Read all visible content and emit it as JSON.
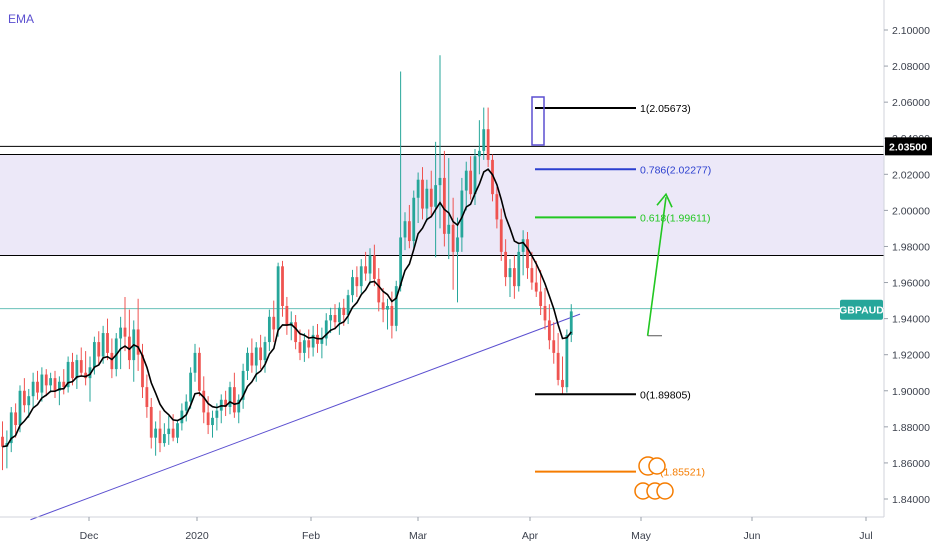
{
  "chart_data": {
    "type": "candlestick",
    "indicator_label": "EMA",
    "x_ticks": [
      "Dec",
      "2020",
      "Feb",
      "Mar",
      "Apr",
      "May",
      "Jun",
      "Jul"
    ],
    "y_ticks": [
      "1.84000",
      "1.86000",
      "1.88000",
      "1.90000",
      "1.92000",
      "1.94000",
      "1.96000",
      "1.98000",
      "2.00000",
      "2.02000",
      "2.04000",
      "2.06000",
      "2.08000",
      "2.10000"
    ],
    "ylim": [
      1.83,
      2.115
    ],
    "price_tag": {
      "value": "2.03500",
      "color": "#000000"
    },
    "symbol_tag": {
      "label": "GBPAUD",
      "value": 1.9455,
      "color": "#26a69a"
    },
    "resistance_zone": {
      "low": 1.975,
      "high": 2.031,
      "color": "#ece8f8",
      "border": "#000000"
    },
    "horizontal_lines": [
      2.0355,
      1.9455
    ],
    "fibonacci": [
      {
        "label": "1(2.05673)",
        "value": 2.05673,
        "color": "#000000"
      },
      {
        "label": "0.786(2.02277)",
        "value": 2.02277,
        "color": "#2b3fcf"
      },
      {
        "label": "0.618(1.99611)",
        "value": 1.99611,
        "color": "#22c722"
      },
      {
        "label": "0(1.89805)",
        "value": 1.89805,
        "color": "#000000"
      },
      {
        "label": "(1.85521)",
        "value": 1.85521,
        "color": "#f57c00"
      }
    ],
    "trendline": {
      "from": [
        0,
        1.8285
      ],
      "to": [
        132,
        1.9425
      ],
      "color": "#5b4fd0"
    },
    "projection_arrow": {
      "from": [
        147,
        1.9305
      ],
      "to": [
        153,
        2.0095
      ],
      "color": "#22c722"
    },
    "colors": {
      "up": "#26a69a",
      "down": "#ef5350",
      "ema": "#000000"
    },
    "candles": [
      {
        "o": 1.8745,
        "h": 1.883,
        "l": 1.856,
        "c": 1.869
      },
      {
        "o": 1.869,
        "h": 1.878,
        "l": 1.857,
        "c": 1.871
      },
      {
        "o": 1.871,
        "h": 1.891,
        "l": 1.866,
        "c": 1.888
      },
      {
        "o": 1.888,
        "h": 1.893,
        "l": 1.874,
        "c": 1.881
      },
      {
        "o": 1.881,
        "h": 1.903,
        "l": 1.877,
        "c": 1.9
      },
      {
        "o": 1.9,
        "h": 1.907,
        "l": 1.888,
        "c": 1.892
      },
      {
        "o": 1.892,
        "h": 1.901,
        "l": 1.885,
        "c": 1.897
      },
      {
        "o": 1.897,
        "h": 1.91,
        "l": 1.891,
        "c": 1.905
      },
      {
        "o": 1.905,
        "h": 1.911,
        "l": 1.895,
        "c": 1.899
      },
      {
        "o": 1.899,
        "h": 1.913,
        "l": 1.894,
        "c": 1.909
      },
      {
        "o": 1.909,
        "h": 1.912,
        "l": 1.897,
        "c": 1.903
      },
      {
        "o": 1.903,
        "h": 1.91,
        "l": 1.899,
        "c": 1.907
      },
      {
        "o": 1.907,
        "h": 1.911,
        "l": 1.896,
        "c": 1.9
      },
      {
        "o": 1.9,
        "h": 1.908,
        "l": 1.892,
        "c": 1.905
      },
      {
        "o": 1.905,
        "h": 1.912,
        "l": 1.898,
        "c": 1.902
      },
      {
        "o": 1.902,
        "h": 1.919,
        "l": 1.899,
        "c": 1.916
      },
      {
        "o": 1.916,
        "h": 1.921,
        "l": 1.903,
        "c": 1.907
      },
      {
        "o": 1.907,
        "h": 1.92,
        "l": 1.901,
        "c": 1.917
      },
      {
        "o": 1.917,
        "h": 1.924,
        "l": 1.908,
        "c": 1.91
      },
      {
        "o": 1.91,
        "h": 1.922,
        "l": 1.903,
        "c": 1.907
      },
      {
        "o": 1.907,
        "h": 1.919,
        "l": 1.894,
        "c": 1.913
      },
      {
        "o": 1.913,
        "h": 1.93,
        "l": 1.909,
        "c": 1.927
      },
      {
        "o": 1.927,
        "h": 1.933,
        "l": 1.914,
        "c": 1.919
      },
      {
        "o": 1.919,
        "h": 1.936,
        "l": 1.915,
        "c": 1.932
      },
      {
        "o": 1.932,
        "h": 1.94,
        "l": 1.917,
        "c": 1.921
      },
      {
        "o": 1.921,
        "h": 1.929,
        "l": 1.907,
        "c": 1.912
      },
      {
        "o": 1.912,
        "h": 1.932,
        "l": 1.908,
        "c": 1.929
      },
      {
        "o": 1.929,
        "h": 1.941,
        "l": 1.912,
        "c": 1.935
      },
      {
        "o": 1.935,
        "h": 1.952,
        "l": 1.922,
        "c": 1.93
      },
      {
        "o": 1.93,
        "h": 1.945,
        "l": 1.912,
        "c": 1.917
      },
      {
        "o": 1.917,
        "h": 1.939,
        "l": 1.905,
        "c": 1.934
      },
      {
        "o": 1.934,
        "h": 1.951,
        "l": 1.911,
        "c": 1.92
      },
      {
        "o": 1.92,
        "h": 1.926,
        "l": 1.896,
        "c": 1.902
      },
      {
        "o": 1.902,
        "h": 1.909,
        "l": 1.885,
        "c": 1.891
      },
      {
        "o": 1.891,
        "h": 1.896,
        "l": 1.868,
        "c": 1.874
      },
      {
        "o": 1.874,
        "h": 1.883,
        "l": 1.864,
        "c": 1.879
      },
      {
        "o": 1.879,
        "h": 1.889,
        "l": 1.866,
        "c": 1.871
      },
      {
        "o": 1.871,
        "h": 1.882,
        "l": 1.869,
        "c": 1.876
      },
      {
        "o": 1.876,
        "h": 1.886,
        "l": 1.87,
        "c": 1.879
      },
      {
        "o": 1.879,
        "h": 1.887,
        "l": 1.872,
        "c": 1.874
      },
      {
        "o": 1.874,
        "h": 1.884,
        "l": 1.871,
        "c": 1.882
      },
      {
        "o": 1.882,
        "h": 1.893,
        "l": 1.878,
        "c": 1.889
      },
      {
        "o": 1.889,
        "h": 1.898,
        "l": 1.883,
        "c": 1.894
      },
      {
        "o": 1.894,
        "h": 1.913,
        "l": 1.89,
        "c": 1.91
      },
      {
        "o": 1.91,
        "h": 1.926,
        "l": 1.905,
        "c": 1.921
      },
      {
        "o": 1.921,
        "h": 1.924,
        "l": 1.897,
        "c": 1.9
      },
      {
        "o": 1.9,
        "h": 1.908,
        "l": 1.882,
        "c": 1.888
      },
      {
        "o": 1.888,
        "h": 1.897,
        "l": 1.876,
        "c": 1.881
      },
      {
        "o": 1.881,
        "h": 1.889,
        "l": 1.874,
        "c": 1.885
      },
      {
        "o": 1.885,
        "h": 1.893,
        "l": 1.878,
        "c": 1.889
      },
      {
        "o": 1.889,
        "h": 1.898,
        "l": 1.882,
        "c": 1.895
      },
      {
        "o": 1.895,
        "h": 1.9,
        "l": 1.886,
        "c": 1.891
      },
      {
        "o": 1.891,
        "h": 1.905,
        "l": 1.887,
        "c": 1.902
      },
      {
        "o": 1.902,
        "h": 1.91,
        "l": 1.885,
        "c": 1.888
      },
      {
        "o": 1.888,
        "h": 1.898,
        "l": 1.882,
        "c": 1.895
      },
      {
        "o": 1.895,
        "h": 1.915,
        "l": 1.89,
        "c": 1.911
      },
      {
        "o": 1.911,
        "h": 1.924,
        "l": 1.906,
        "c": 1.921
      },
      {
        "o": 1.921,
        "h": 1.929,
        "l": 1.91,
        "c": 1.914
      },
      {
        "o": 1.914,
        "h": 1.927,
        "l": 1.905,
        "c": 1.924
      },
      {
        "o": 1.924,
        "h": 1.931,
        "l": 1.912,
        "c": 1.917
      },
      {
        "o": 1.917,
        "h": 1.93,
        "l": 1.91,
        "c": 1.927
      },
      {
        "o": 1.927,
        "h": 1.945,
        "l": 1.922,
        "c": 1.941
      },
      {
        "o": 1.941,
        "h": 1.95,
        "l": 1.927,
        "c": 1.934
      },
      {
        "o": 1.934,
        "h": 1.971,
        "l": 1.93,
        "c": 1.969
      },
      {
        "o": 1.969,
        "h": 1.972,
        "l": 1.941,
        "c": 1.947
      },
      {
        "o": 1.947,
        "h": 1.952,
        "l": 1.931,
        "c": 1.936
      },
      {
        "o": 1.936,
        "h": 1.944,
        "l": 1.928,
        "c": 1.938
      },
      {
        "o": 1.938,
        "h": 1.942,
        "l": 1.923,
        "c": 1.927
      },
      {
        "o": 1.927,
        "h": 1.934,
        "l": 1.917,
        "c": 1.921
      },
      {
        "o": 1.921,
        "h": 1.932,
        "l": 1.916,
        "c": 1.928
      },
      {
        "o": 1.928,
        "h": 1.934,
        "l": 1.918,
        "c": 1.924
      },
      {
        "o": 1.924,
        "h": 1.936,
        "l": 1.919,
        "c": 1.931
      },
      {
        "o": 1.931,
        "h": 1.937,
        "l": 1.921,
        "c": 1.926
      },
      {
        "o": 1.926,
        "h": 1.935,
        "l": 1.918,
        "c": 1.929
      },
      {
        "o": 1.929,
        "h": 1.943,
        "l": 1.925,
        "c": 1.939
      },
      {
        "o": 1.939,
        "h": 1.946,
        "l": 1.932,
        "c": 1.942
      },
      {
        "o": 1.942,
        "h": 1.948,
        "l": 1.934,
        "c": 1.938
      },
      {
        "o": 1.938,
        "h": 1.949,
        "l": 1.931,
        "c": 1.946
      },
      {
        "o": 1.946,
        "h": 1.951,
        "l": 1.936,
        "c": 1.942
      },
      {
        "o": 1.942,
        "h": 1.956,
        "l": 1.937,
        "c": 1.953
      },
      {
        "o": 1.953,
        "h": 1.967,
        "l": 1.949,
        "c": 1.963
      },
      {
        "o": 1.963,
        "h": 1.969,
        "l": 1.952,
        "c": 1.958
      },
      {
        "o": 1.958,
        "h": 1.973,
        "l": 1.954,
        "c": 1.969
      },
      {
        "o": 1.969,
        "h": 1.977,
        "l": 1.961,
        "c": 1.965
      },
      {
        "o": 1.965,
        "h": 1.979,
        "l": 1.959,
        "c": 1.975
      },
      {
        "o": 1.975,
        "h": 1.981,
        "l": 1.958,
        "c": 1.962
      },
      {
        "o": 1.962,
        "h": 1.968,
        "l": 1.944,
        "c": 1.949
      },
      {
        "o": 1.949,
        "h": 1.957,
        "l": 1.938,
        "c": 1.945
      },
      {
        "o": 1.945,
        "h": 1.951,
        "l": 1.934,
        "c": 1.947
      },
      {
        "o": 1.947,
        "h": 1.955,
        "l": 1.929,
        "c": 1.936
      },
      {
        "o": 1.936,
        "h": 1.961,
        "l": 1.933,
        "c": 1.958
      },
      {
        "o": 1.958,
        "h": 2.077,
        "l": 1.955,
        "c": 1.985
      },
      {
        "o": 1.985,
        "h": 1.999,
        "l": 1.978,
        "c": 1.994
      },
      {
        "o": 1.994,
        "h": 2.003,
        "l": 1.979,
        "c": 1.983
      },
      {
        "o": 1.983,
        "h": 2.011,
        "l": 1.979,
        "c": 2.007
      },
      {
        "o": 2.007,
        "h": 2.021,
        "l": 1.993,
        "c": 2.017
      },
      {
        "o": 2.017,
        "h": 2.024,
        "l": 1.995,
        "c": 2.001
      },
      {
        "o": 2.001,
        "h": 2.017,
        "l": 1.994,
        "c": 2.012
      },
      {
        "o": 2.012,
        "h": 2.022,
        "l": 1.996,
        "c": 2.002
      },
      {
        "o": 2.002,
        "h": 2.038,
        "l": 1.974,
        "c": 2.014
      },
      {
        "o": 2.014,
        "h": 2.086,
        "l": 1.99,
        "c": 2.018
      },
      {
        "o": 2.018,
        "h": 2.033,
        "l": 1.98,
        "c": 1.987
      },
      {
        "o": 1.987,
        "h": 2.029,
        "l": 1.973,
        "c": 1.992
      },
      {
        "o": 1.992,
        "h": 2.007,
        "l": 1.956,
        "c": 1.977
      },
      {
        "o": 1.977,
        "h": 1.996,
        "l": 1.949,
        "c": 1.985
      },
      {
        "o": 1.985,
        "h": 2.018,
        "l": 1.977,
        "c": 2.011
      },
      {
        "o": 2.011,
        "h": 2.027,
        "l": 2.0,
        "c": 2.022
      },
      {
        "o": 2.022,
        "h": 2.03,
        "l": 2.006,
        "c": 2.009
      },
      {
        "o": 2.009,
        "h": 2.034,
        "l": 2.003,
        "c": 2.03
      },
      {
        "o": 2.03,
        "h": 2.05,
        "l": 2.02,
        "c": 2.033
      },
      {
        "o": 2.033,
        "h": 2.057,
        "l": 2.028,
        "c": 2.045
      },
      {
        "o": 2.045,
        "h": 2.057,
        "l": 2.024,
        "c": 2.028
      },
      {
        "o": 2.028,
        "h": 2.031,
        "l": 2.005,
        "c": 2.009
      },
      {
        "o": 2.009,
        "h": 2.013,
        "l": 1.99,
        "c": 1.995
      },
      {
        "o": 1.995,
        "h": 2.001,
        "l": 1.972,
        "c": 1.977
      },
      {
        "o": 1.977,
        "h": 1.984,
        "l": 1.958,
        "c": 1.963
      },
      {
        "o": 1.963,
        "h": 1.973,
        "l": 1.952,
        "c": 1.968
      },
      {
        "o": 1.968,
        "h": 1.975,
        "l": 1.951,
        "c": 1.958
      },
      {
        "o": 1.958,
        "h": 1.981,
        "l": 1.955,
        "c": 1.977
      },
      {
        "o": 1.977,
        "h": 1.989,
        "l": 1.964,
        "c": 1.984
      },
      {
        "o": 1.984,
        "h": 1.988,
        "l": 1.962,
        "c": 1.968
      },
      {
        "o": 1.968,
        "h": 1.977,
        "l": 1.956,
        "c": 1.96
      },
      {
        "o": 1.96,
        "h": 1.972,
        "l": 1.952,
        "c": 1.955
      },
      {
        "o": 1.955,
        "h": 1.967,
        "l": 1.942,
        "c": 1.947
      },
      {
        "o": 1.947,
        "h": 1.957,
        "l": 1.934,
        "c": 1.939
      },
      {
        "o": 1.939,
        "h": 1.948,
        "l": 1.923,
        "c": 1.928
      },
      {
        "o": 1.928,
        "h": 1.938,
        "l": 1.915,
        "c": 1.921
      },
      {
        "o": 1.921,
        "h": 1.932,
        "l": 1.903,
        "c": 1.906
      },
      {
        "o": 1.906,
        "h": 1.919,
        "l": 1.898,
        "c": 1.902
      },
      {
        "o": 1.902,
        "h": 1.934,
        "l": 1.899,
        "c": 1.931
      },
      {
        "o": 1.931,
        "h": 1.948,
        "l": 1.927,
        "c": 1.944
      }
    ]
  }
}
